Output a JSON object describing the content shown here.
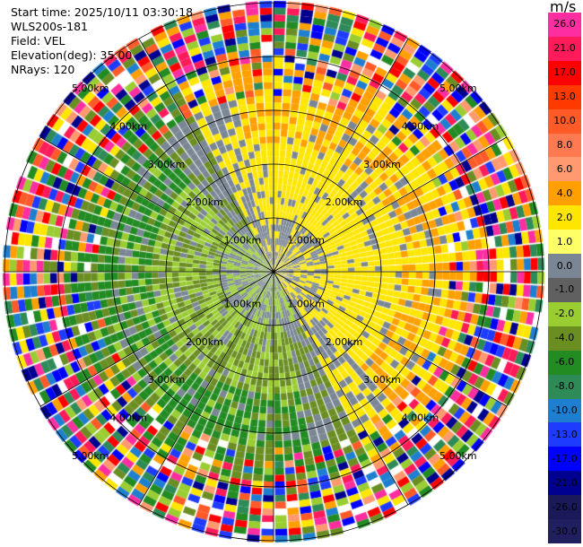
{
  "info": {
    "start_time": "Start time: 2025/10/11 03:30:18",
    "site": "WLS200s-181",
    "field": "Field: VEL",
    "elevation": "Elevation(deg): 35.00",
    "nrays": "NRays: 120"
  },
  "colorbar": {
    "unit": "m/s",
    "ticks": [
      "26.0",
      "21.0",
      "17.0",
      "13.0",
      "10.0",
      "8.0",
      "6.0",
      "4.0",
      "2.0",
      "1.0",
      "0.0",
      "-1.0",
      "-2.0",
      "-4.0",
      "-6.0",
      "-8.0",
      "-10.0",
      "-13.0",
      "-17.0",
      "-21.0",
      "-26.0",
      "-30.0"
    ],
    "colors": [
      "#ff2ea0",
      "#ff1a5a",
      "#ff0000",
      "#ff3a00",
      "#ff5a28",
      "#ff7a50",
      "#ff9a70",
      "#ffa000",
      "#ffe600",
      "#ffff66",
      "#7a8694",
      "#606060",
      "#9acd32",
      "#6b8e23",
      "#228b22",
      "#2e8b57",
      "#1e7fd0",
      "#1e3cff",
      "#0000ff",
      "#000090",
      "#1a1a5a",
      "#202060"
    ]
  },
  "range_labels": [
    "1.00km",
    "2.00km",
    "3.00km",
    "4.00km",
    "5.00km"
  ]
}
